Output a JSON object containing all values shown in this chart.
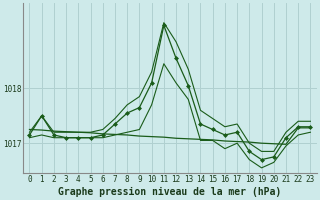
{
  "title": "Graphe pression niveau de la mer (hPa)",
  "background_color": "#ceeaea",
  "grid_color": "#b0d0d0",
  "line_color": "#1a5c1a",
  "hours": [
    0,
    1,
    2,
    3,
    4,
    5,
    6,
    7,
    8,
    9,
    10,
    11,
    12,
    13,
    14,
    15,
    16,
    17,
    18,
    19,
    20,
    21,
    22,
    23
  ],
  "series_main": [
    1017.15,
    1017.5,
    1017.15,
    1017.1,
    1017.1,
    1017.1,
    1017.15,
    1017.35,
    1017.55,
    1017.65,
    1018.1,
    1019.15,
    1018.55,
    1018.05,
    1017.35,
    1017.25,
    1017.15,
    1017.2,
    1016.85,
    1016.7,
    1016.75,
    1017.1,
    1017.3,
    1017.3
  ],
  "series_min": [
    1017.1,
    1017.15,
    1017.1,
    1017.1,
    1017.1,
    1017.1,
    1017.1,
    1017.15,
    1017.2,
    1017.25,
    1017.7,
    1018.45,
    1018.1,
    1017.8,
    1017.05,
    1017.05,
    1016.9,
    1017.0,
    1016.7,
    1016.55,
    1016.65,
    1016.95,
    1017.15,
    1017.2
  ],
  "series_max": [
    1017.2,
    1017.5,
    1017.2,
    1017.2,
    1017.2,
    1017.2,
    1017.25,
    1017.45,
    1017.7,
    1017.85,
    1018.3,
    1019.2,
    1018.85,
    1018.35,
    1017.6,
    1017.45,
    1017.3,
    1017.35,
    1017.0,
    1016.85,
    1016.85,
    1017.2,
    1017.4,
    1017.4
  ],
  "series_trend": [
    1017.25,
    1017.24,
    1017.22,
    1017.21,
    1017.2,
    1017.19,
    1017.17,
    1017.16,
    1017.15,
    1017.13,
    1017.12,
    1017.11,
    1017.09,
    1017.08,
    1017.07,
    1017.06,
    1017.04,
    1017.03,
    1017.02,
    1017.0,
    1016.99,
    1016.98,
    1017.28,
    1017.28
  ],
  "ytick_vals": [
    1017.0,
    1018.0
  ],
  "ytick_labels": [
    "1017",
    "1018"
  ],
  "ylim": [
    1016.45,
    1019.55
  ],
  "xlim": [
    -0.5,
    23.5
  ],
  "title_fontsize": 7.0,
  "tick_fontsize": 5.5
}
